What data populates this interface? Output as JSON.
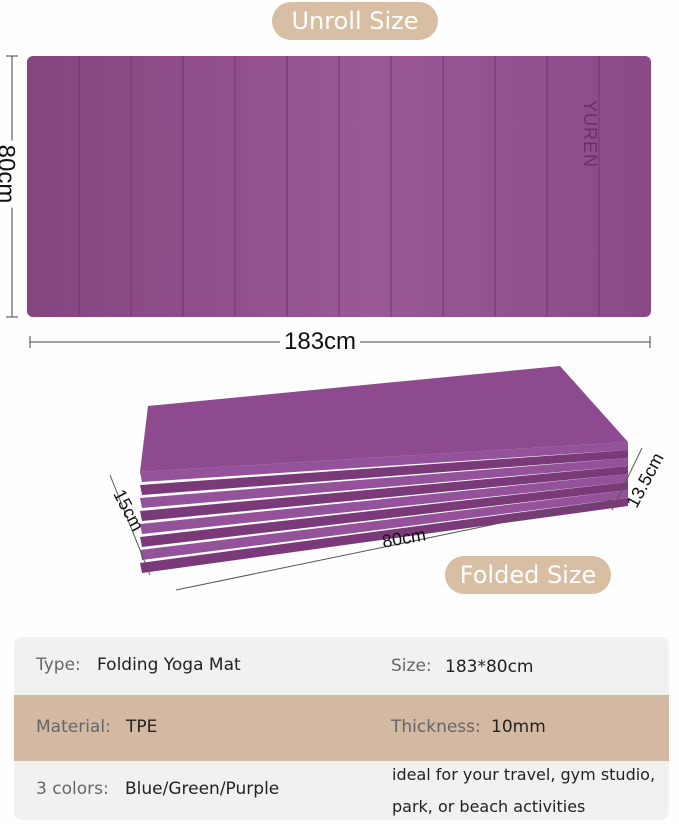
{
  "unroll_label": "Unroll Size",
  "folded_label": "Folded Size",
  "brand": "YUREN",
  "dimensions": {
    "unroll_width": "80cm",
    "unroll_length": "183cm",
    "folded_thickness": "15cm",
    "folded_depth": "13.5cm",
    "folded_length": "80cm"
  },
  "colors": {
    "mat": "#8c4a8c",
    "accent": "#d8bea3",
    "table_bg": "#f1f1f2"
  },
  "specs": [
    {
      "label": "Type:",
      "value": "Folding Yoga Mat",
      "label2": "Size:",
      "value2": "183*80cm"
    },
    {
      "label": "Material:",
      "value": "TPE",
      "label2": "Thickness:",
      "value2": "10mm"
    },
    {
      "label": "3 colors:",
      "value": "Blue/Green/Purple",
      "note_line1": "ideal for your travel, gym studio,",
      "note_line2": "park, or beach activities"
    }
  ]
}
